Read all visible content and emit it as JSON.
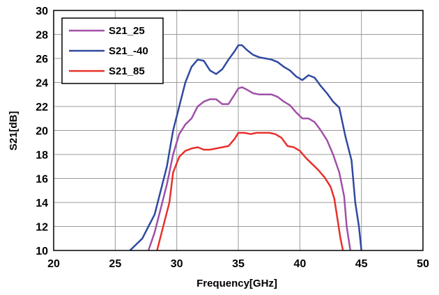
{
  "chart_data": {
    "type": "line",
    "title": "",
    "xlabel": "Frequency[GHz]",
    "ylabel": "S21[dB]",
    "xlim": [
      20,
      50
    ],
    "ylim": [
      10,
      30
    ],
    "xticks": [
      20,
      25,
      30,
      35,
      40,
      45,
      50
    ],
    "yticks": [
      10,
      12,
      14,
      16,
      18,
      20,
      22,
      24,
      26,
      28,
      30
    ],
    "grid": true,
    "legend_position": "top-left",
    "series": [
      {
        "name": "S21_25",
        "color": "#a050a8",
        "points": [
          [
            27.7,
            10
          ],
          [
            28.2,
            11.5
          ],
          [
            28.7,
            13.5
          ],
          [
            29.2,
            15.5
          ],
          [
            29.7,
            18
          ],
          [
            30.2,
            19.7
          ],
          [
            30.7,
            20.5
          ],
          [
            31.2,
            21
          ],
          [
            31.7,
            22
          ],
          [
            32.2,
            22.4
          ],
          [
            32.7,
            22.6
          ],
          [
            33.2,
            22.6
          ],
          [
            33.7,
            22.2
          ],
          [
            34.2,
            22.2
          ],
          [
            34.7,
            23
          ],
          [
            35.0,
            23.5
          ],
          [
            35.3,
            23.6
          ],
          [
            35.7,
            23.4
          ],
          [
            36.2,
            23.1
          ],
          [
            36.7,
            23.0
          ],
          [
            37.2,
            23.0
          ],
          [
            37.7,
            23.0
          ],
          [
            38.2,
            22.8
          ],
          [
            38.7,
            22.4
          ],
          [
            39.2,
            22.1
          ],
          [
            39.7,
            21.5
          ],
          [
            40.2,
            21.0
          ],
          [
            40.7,
            21.0
          ],
          [
            41.2,
            20.7
          ],
          [
            41.7,
            20.0
          ],
          [
            42.2,
            19.2
          ],
          [
            42.7,
            18.0
          ],
          [
            43.2,
            16.5
          ],
          [
            43.6,
            14.5
          ],
          [
            43.8,
            12
          ],
          [
            44.1,
            10
          ]
        ]
      },
      {
        "name": "S21_-40",
        "color": "#3049a0",
        "points": [
          [
            26.2,
            10
          ],
          [
            26.7,
            10.5
          ],
          [
            27.2,
            11
          ],
          [
            27.7,
            12
          ],
          [
            28.2,
            13
          ],
          [
            28.7,
            15
          ],
          [
            29.2,
            17
          ],
          [
            29.7,
            20
          ],
          [
            30.2,
            22
          ],
          [
            30.7,
            24
          ],
          [
            31.2,
            25.3
          ],
          [
            31.7,
            25.9
          ],
          [
            32.2,
            25.8
          ],
          [
            32.7,
            25
          ],
          [
            33.2,
            24.7
          ],
          [
            33.7,
            25.1
          ],
          [
            34.2,
            25.9
          ],
          [
            34.7,
            26.6
          ],
          [
            35.0,
            27.1
          ],
          [
            35.3,
            27.1
          ],
          [
            35.7,
            26.7
          ],
          [
            36.2,
            26.3
          ],
          [
            36.7,
            26.1
          ],
          [
            37.2,
            26.0
          ],
          [
            37.7,
            25.9
          ],
          [
            38.2,
            25.7
          ],
          [
            38.7,
            25.3
          ],
          [
            39.2,
            25.0
          ],
          [
            39.7,
            24.5
          ],
          [
            40.2,
            24.2
          ],
          [
            40.7,
            24.6
          ],
          [
            41.2,
            24.4
          ],
          [
            41.7,
            23.7
          ],
          [
            42.2,
            23.1
          ],
          [
            42.7,
            22.4
          ],
          [
            43.2,
            21.9
          ],
          [
            43.7,
            19.5
          ],
          [
            44.2,
            17.5
          ],
          [
            44.5,
            14
          ],
          [
            44.8,
            12
          ],
          [
            45.0,
            10
          ]
        ]
      },
      {
        "name": "S21_85",
        "color": "#e8302a",
        "points": [
          [
            28.4,
            10
          ],
          [
            28.9,
            12
          ],
          [
            29.4,
            14
          ],
          [
            29.7,
            16.5
          ],
          [
            30.2,
            17.8
          ],
          [
            30.7,
            18.3
          ],
          [
            31.2,
            18.5
          ],
          [
            31.7,
            18.6
          ],
          [
            32.2,
            18.4
          ],
          [
            32.7,
            18.4
          ],
          [
            33.2,
            18.5
          ],
          [
            33.7,
            18.6
          ],
          [
            34.2,
            18.7
          ],
          [
            34.7,
            19.3
          ],
          [
            35.0,
            19.8
          ],
          [
            35.5,
            19.8
          ],
          [
            36.0,
            19.7
          ],
          [
            36.5,
            19.8
          ],
          [
            37.0,
            19.8
          ],
          [
            37.5,
            19.8
          ],
          [
            38.0,
            19.7
          ],
          [
            38.5,
            19.4
          ],
          [
            39.0,
            18.7
          ],
          [
            39.5,
            18.6
          ],
          [
            40.0,
            18.3
          ],
          [
            40.5,
            17.7
          ],
          [
            41.0,
            17.2
          ],
          [
            41.5,
            16.7
          ],
          [
            42.0,
            16.1
          ],
          [
            42.5,
            15.3
          ],
          [
            42.8,
            14.3
          ],
          [
            43.0,
            13
          ],
          [
            43.3,
            11
          ],
          [
            43.5,
            10
          ]
        ]
      }
    ]
  }
}
